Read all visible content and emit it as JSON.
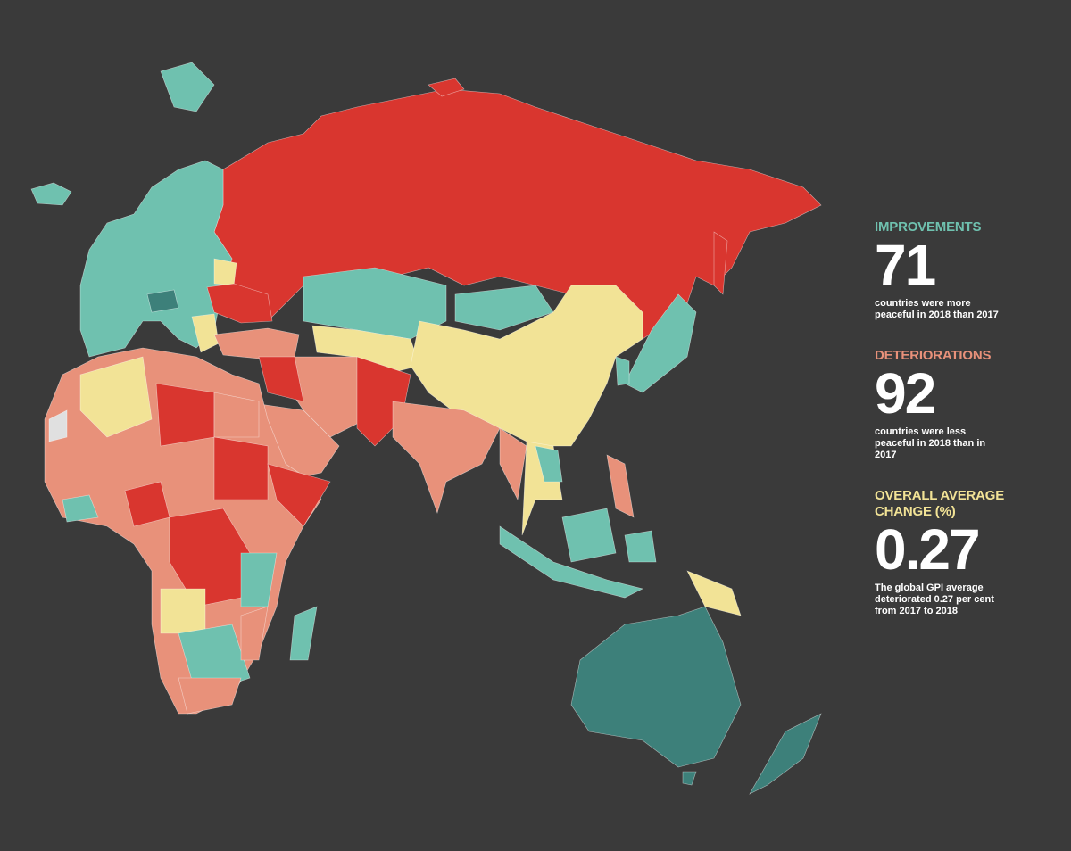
{
  "stats": [
    {
      "heading": "IMPROVEMENTS",
      "value": 71,
      "description": "countries were more peaceful in 2018 than 2017"
    },
    {
      "heading": "DETERIORATIONS",
      "value": 92,
      "description": "countries were less peaceful in 2018 than in 2017"
    },
    {
      "heading": "OVERALL AVERAGE CHANGE (%)",
      "value": 0.27,
      "description": "The global GPI average deteriorated 0.27 per cent from 2017 to 2018"
    }
  ]
}
